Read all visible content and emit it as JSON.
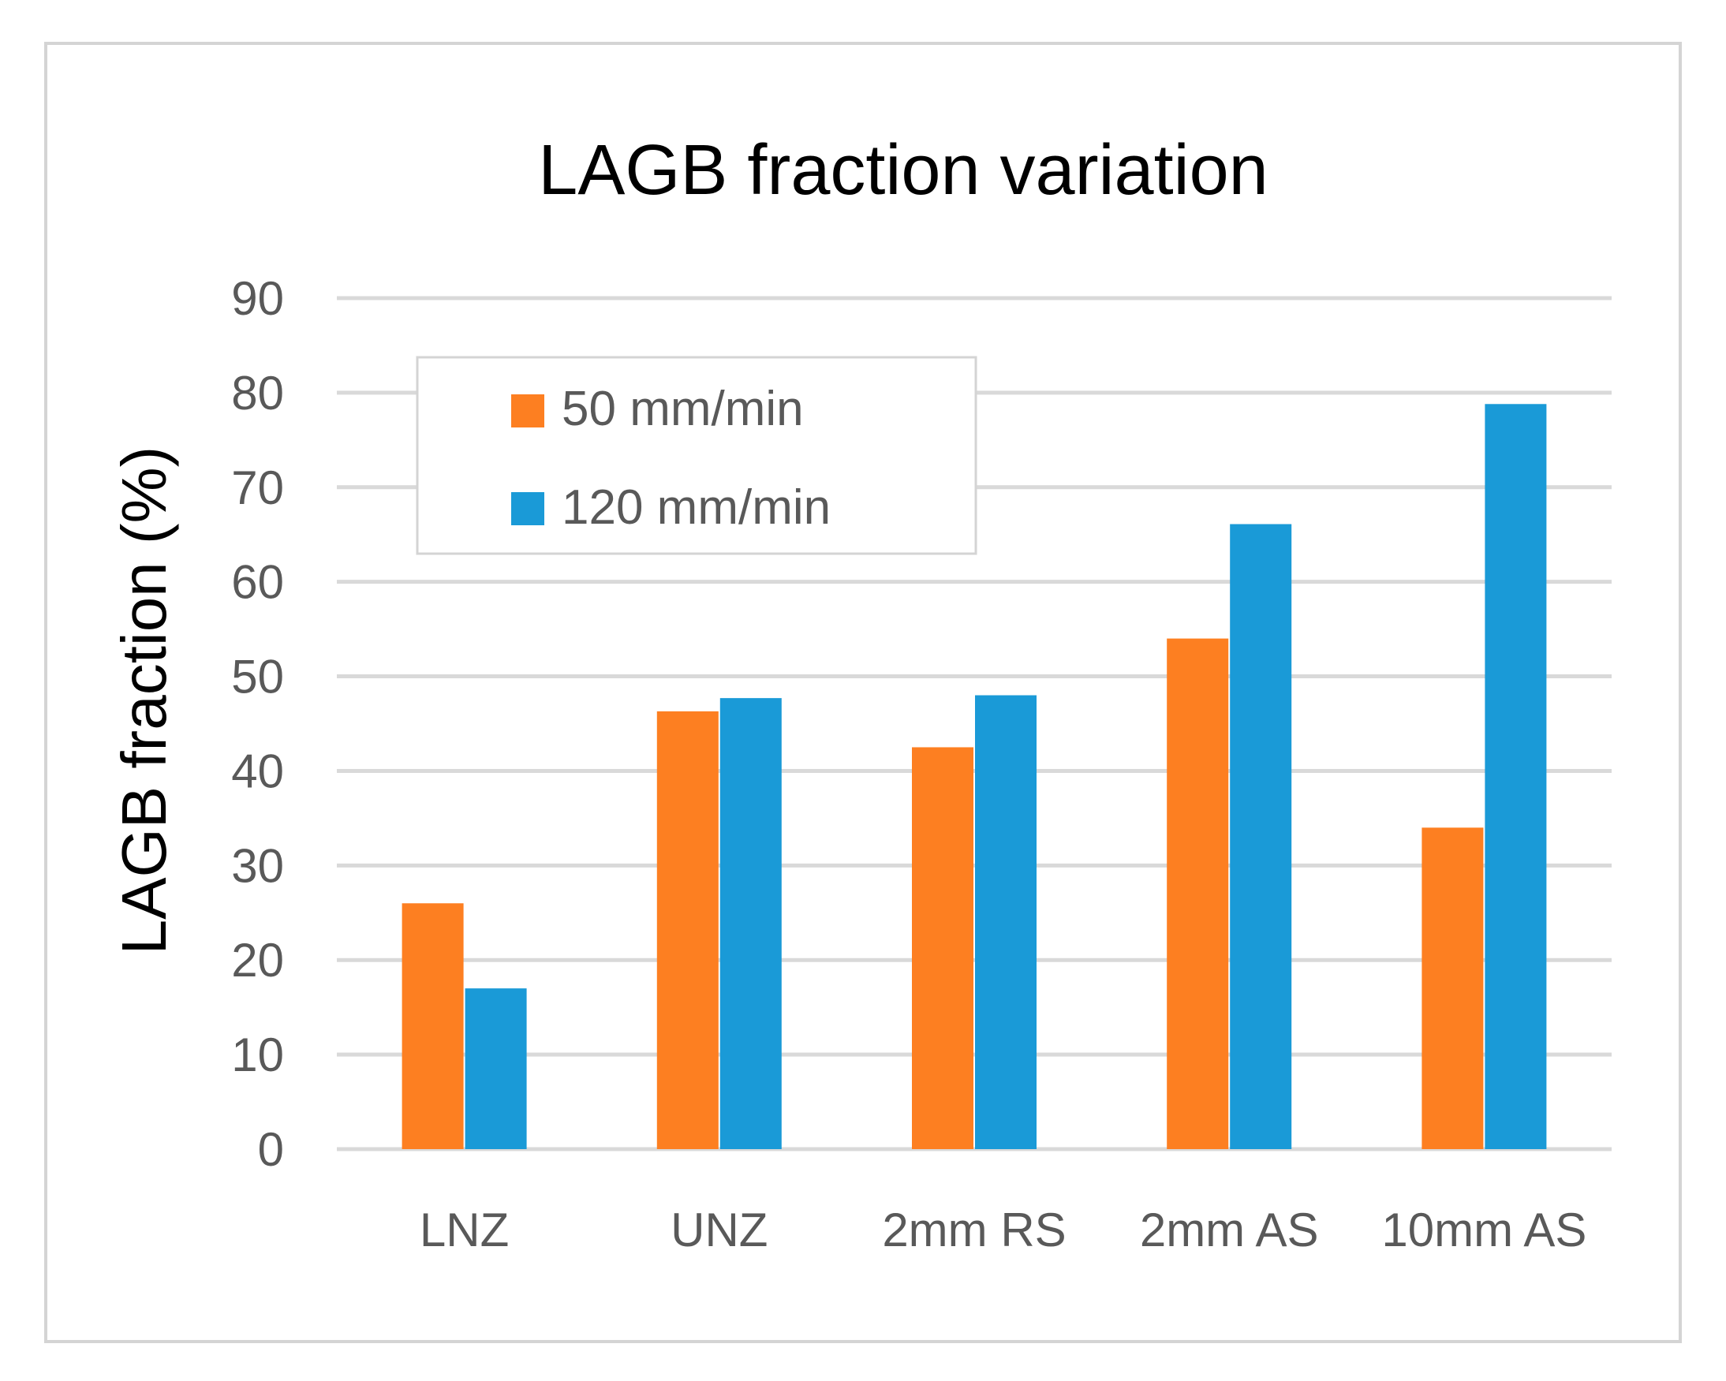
{
  "chart_data": {
    "type": "bar",
    "title": "LAGB fraction variation",
    "xlabel": "",
    "ylabel": "LAGB fraction (%)",
    "ylim": [
      0,
      90
    ],
    "yticks": [
      0,
      10,
      20,
      30,
      40,
      50,
      60,
      70,
      80,
      90
    ],
    "categories": [
      "LNZ",
      "UNZ",
      "2mm RS",
      "2mm AS",
      "10mm AS"
    ],
    "series": [
      {
        "name": "50 mm/min",
        "color": "#fd7f21",
        "values": [
          26,
          46.3,
          42.5,
          54,
          34
        ]
      },
      {
        "name": "120 mm/min",
        "color": "#1a9ad7",
        "values": [
          17,
          47.7,
          48,
          66.1,
          78.8
        ]
      }
    ],
    "grid": true,
    "legend_position": "upper-left"
  }
}
